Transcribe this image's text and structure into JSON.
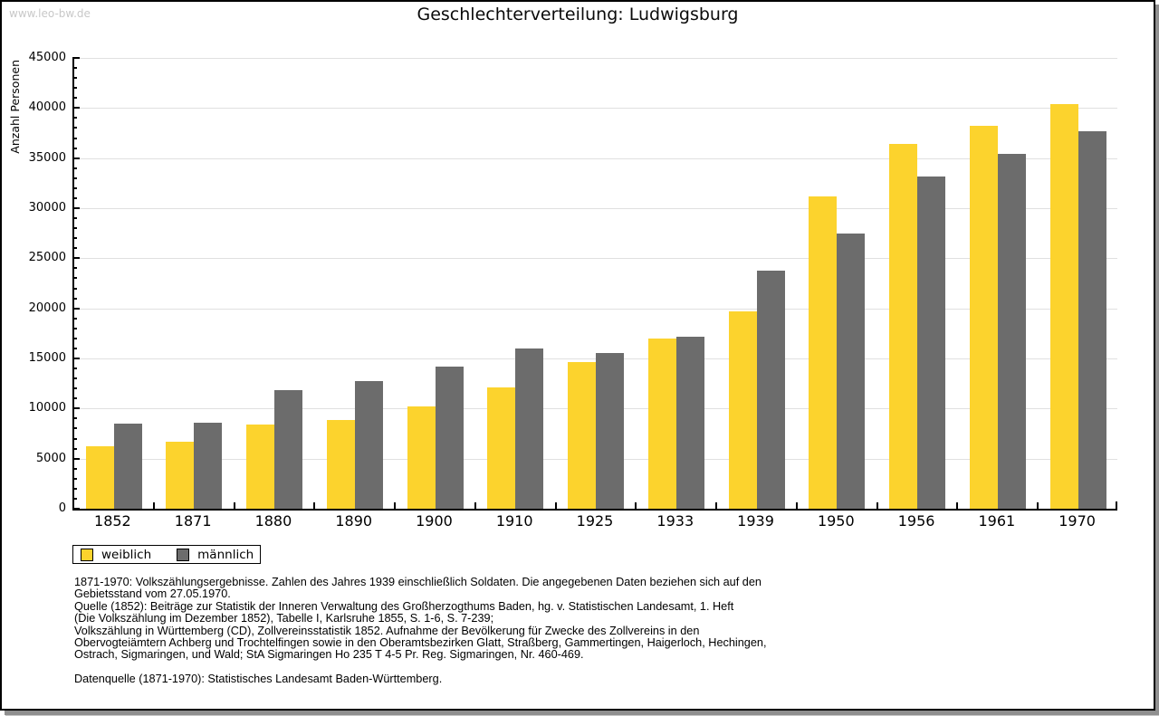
{
  "watermark": "www.leo-bw.de",
  "chart_data": {
    "type": "bar",
    "title": "Geschlechterverteilung: Ludwigsburg",
    "xlabel": "",
    "ylabel": "Anzahl Personen",
    "ylim": [
      0,
      45000
    ],
    "ytick_interval": 5000,
    "yminor_tick_interval": 1000,
    "grid": true,
    "legend_position": "bottom-left-below-plot",
    "categories": [
      "1852",
      "1871",
      "1880",
      "1890",
      "1900",
      "1910",
      "1925",
      "1933",
      "1939",
      "1950",
      "1956",
      "1961",
      "1970"
    ],
    "series": [
      {
        "name": "weiblich",
        "color": "#fcd32d",
        "values": [
          6200,
          6700,
          8400,
          8900,
          10200,
          12100,
          14600,
          17000,
          19700,
          31200,
          36400,
          38200,
          40400
        ]
      },
      {
        "name": "männlich",
        "color": "#6c6c6c",
        "values": [
          8500,
          8600,
          11800,
          12700,
          14200,
          16000,
          15500,
          17200,
          23800,
          27500,
          33200,
          35400,
          37700
        ]
      }
    ]
  },
  "colors": {
    "gridline": "#e0e0e0",
    "axis": "#000000",
    "watermark": "#c8c8c8",
    "page_background": "#ffffff",
    "frame_shadow": "#8f8f8f"
  },
  "footnotes": {
    "lines": [
      "1871-1970: Volkszählungsergebnisse. Zahlen des Jahres 1939 einschließlich Soldaten. Die angegebenen Daten beziehen sich auf den",
      "Gebietsstand vom 27.05.1970.",
      "Quelle (1852): Beiträge zur Statistik der Inneren Verwaltung des Großherzogthums Baden, hg. v. Statistischen Landesamt, 1. Heft",
      "(Die Volkszählung im Dezember 1852), Tabelle I, Karlsruhe 1855, S. 1-6, S. 7-239;",
      "Volkszählung in Württemberg (CD), Zollvereinsstatistik 1852. Aufnahme der Bevölkerung für Zwecke des Zollvereins in den",
      "Obervogteiämtern Achberg und Trochtelfingen sowie in den Oberamtsbezirken Glatt, Straßberg, Gammertingen, Haigerloch, Hechingen,",
      "Ostrach, Sigmaringen, und Wald; StA Sigmaringen Ho 235 T 4-5 Pr. Reg. Sigmaringen, Nr. 460-469."
    ],
    "datasource": "Datenquelle (1871-1970): Statistisches Landesamt Baden-Württemberg."
  }
}
